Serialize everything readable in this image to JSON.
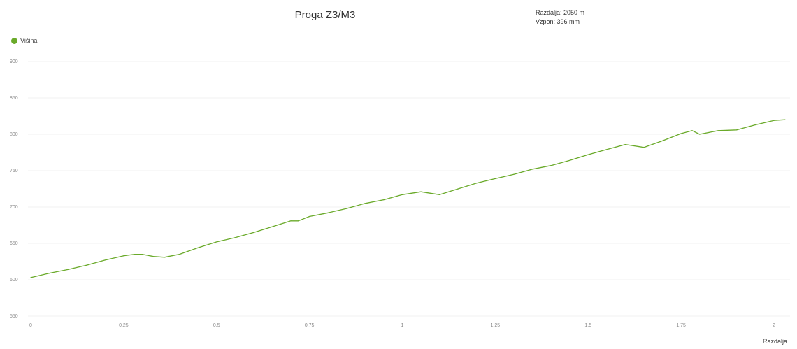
{
  "chart_data": {
    "type": "line",
    "title": "Proga Z3/M3",
    "stats": {
      "distance": "Razdalja: 2050 m",
      "climb": "Vzpon: 396 mm"
    },
    "legend": [
      {
        "name": "Višina",
        "color": "#6aaa2a"
      }
    ],
    "xlabel": "Razdalja",
    "ylabel": "",
    "x_ticks": [
      "0",
      "0.25",
      "0.5",
      "0.75",
      "1",
      "1.25",
      "1.5",
      "1.75",
      "2"
    ],
    "y_ticks": [
      550,
      600,
      650,
      700,
      750,
      800,
      850,
      900
    ],
    "xlim": [
      0,
      2.05
    ],
    "ylim": [
      550,
      900
    ],
    "grid": true,
    "legend_position": "top-left",
    "series": [
      {
        "name": "Višina",
        "color": "#6aaa2a",
        "x": [
          0,
          0.05,
          0.1,
          0.15,
          0.2,
          0.25,
          0.28,
          0.3,
          0.33,
          0.36,
          0.4,
          0.45,
          0.5,
          0.55,
          0.6,
          0.65,
          0.7,
          0.72,
          0.75,
          0.8,
          0.85,
          0.9,
          0.95,
          1.0,
          1.05,
          1.1,
          1.15,
          1.2,
          1.25,
          1.3,
          1.35,
          1.4,
          1.45,
          1.5,
          1.55,
          1.6,
          1.65,
          1.7,
          1.75,
          1.78,
          1.8,
          1.85,
          1.9,
          1.95,
          2.0,
          2.03
        ],
        "values": [
          603,
          609,
          614,
          620,
          627,
          633,
          635,
          635,
          632,
          631,
          635,
          644,
          652,
          658,
          665,
          673,
          681,
          681,
          687,
          692,
          698,
          705,
          710,
          717,
          721,
          717,
          725,
          733,
          739,
          745,
          752,
          757,
          764,
          772,
          779,
          786,
          782,
          791,
          801,
          805,
          800,
          805,
          806,
          813,
          819,
          820
        ]
      }
    ]
  }
}
